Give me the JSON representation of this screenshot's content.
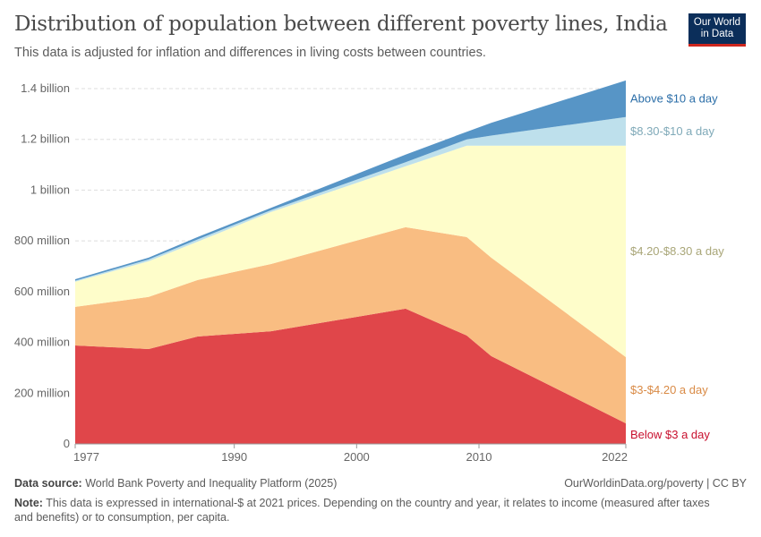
{
  "title": "Distribution of population between different poverty lines, India",
  "subtitle": "This data is adjusted for inflation and differences in living costs between countries.",
  "logo": {
    "line1": "Our World",
    "line2": "in Data"
  },
  "footer": {
    "source_label": "Data source:",
    "source": "World Bank Poverty and Inequality Platform (2025)",
    "license": "OurWorldinData.org/poverty | CC BY",
    "note_label": "Note:",
    "note": "This data is expressed in international-$ at 2021 prices. Depending on the country and year, it relates to income (measured after taxes and benefits) or to consumption, per capita."
  },
  "chart_data": {
    "type": "area",
    "stacked": true,
    "x": [
      1977,
      1983,
      1987,
      1993,
      2004,
      2009,
      2011,
      2022
    ],
    "xlim": [
      1977,
      2022
    ],
    "ylim": [
      0,
      1400000000
    ],
    "x_ticks": [
      "1977",
      "1990",
      "2000",
      "2010",
      "2022"
    ],
    "x_tick_values": [
      1977,
      1990,
      2000,
      2010,
      2022
    ],
    "y_ticks": [
      "0",
      "200 million",
      "400 million",
      "600 million",
      "800 million",
      "1 billion",
      "1.2 billion",
      "1.4 billion"
    ],
    "y_tick_values": [
      0,
      200000000,
      400000000,
      600000000,
      800000000,
      1000000000,
      1200000000,
      1400000000
    ],
    "grid": "horizontal dashed",
    "legend": "right, inline labels",
    "series": [
      {
        "name": "Below $3 a day",
        "color": "#e0464a",
        "label_color": "#c8102e",
        "values": [
          388000000,
          374000000,
          423000000,
          444000000,
          533000000,
          427000000,
          346000000,
          81000000
        ]
      },
      {
        "name": "$3-$4.20 a day",
        "color": "#f9bd82",
        "label_color": "#d98a45",
        "values": [
          152000000,
          205000000,
          223000000,
          265000000,
          321000000,
          388000000,
          388000000,
          261000000
        ]
      },
      {
        "name": "$4.20-$8.30 a day",
        "color": "#fefdca",
        "label_color": "#a9a678",
        "values": [
          99000000,
          141000000,
          151000000,
          205000000,
          240000000,
          360000000,
          441000000,
          833000000
        ]
      },
      {
        "name": "$8.30-$10 a day",
        "color": "#bee0ec",
        "label_color": "#7fa9b8",
        "values": [
          4000000,
          7000000,
          9000000,
          7000000,
          16000000,
          25000000,
          40000000,
          113000000
        ]
      },
      {
        "name": "Above $10 a day",
        "color": "#5795c6",
        "label_color": "#2b6ea8",
        "values": [
          6000000,
          7000000,
          9000000,
          9000000,
          30000000,
          30000000,
          50000000,
          144000000
        ]
      }
    ]
  }
}
